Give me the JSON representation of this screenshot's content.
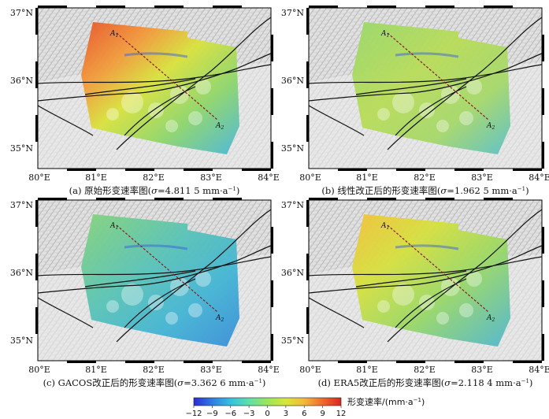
{
  "panels": [
    {
      "caption_pre": "(a) 原始形变速率图(",
      "sigma": "σ",
      "caption_val": "=4.811 5 mm·a",
      "sup": "−1",
      "caption_post": ")",
      "scheme": "raw"
    },
    {
      "caption_pre": "(b) 线性改正后的形变速率图(",
      "sigma": "σ",
      "caption_val": "=1.962 5 mm·a",
      "sup": "−1",
      "caption_post": ")",
      "scheme": "linear"
    },
    {
      "caption_pre": "(c) GACOS改正后的形变速率图(",
      "sigma": "σ",
      "caption_val": "=3.362 6 mm·a",
      "sup": "−1",
      "caption_post": ")",
      "scheme": "gacos"
    },
    {
      "caption_pre": "(d) ERA5改正后的形变速率图(",
      "sigma": "σ",
      "caption_val": "=2.118 4 mm·a",
      "sup": "−1",
      "caption_post": ")",
      "scheme": "era5"
    }
  ],
  "axes": {
    "lat_labels": [
      "37°N",
      "36°N",
      "35°N"
    ],
    "lon_labels": [
      "80°E",
      "81°E",
      "82°E",
      "83°E",
      "84°E"
    ]
  },
  "profile": {
    "start_label": "A",
    "start_sub": "1",
    "end_label": "A",
    "end_sub": "2"
  },
  "colorbar": {
    "title": "形变速率/(mm·a",
    "title_sup": "−1",
    "title_close": ")",
    "ticks": [
      "−12",
      "−9",
      "−6",
      "−3",
      "0",
      "3",
      "6",
      "9",
      "12"
    ],
    "colors": [
      "#2b2bd6",
      "#2f7de0",
      "#35c0e0",
      "#5fe0a8",
      "#9ae65c",
      "#d8e63a",
      "#f4b83a",
      "#ef6a2c",
      "#d9261e"
    ]
  }
}
